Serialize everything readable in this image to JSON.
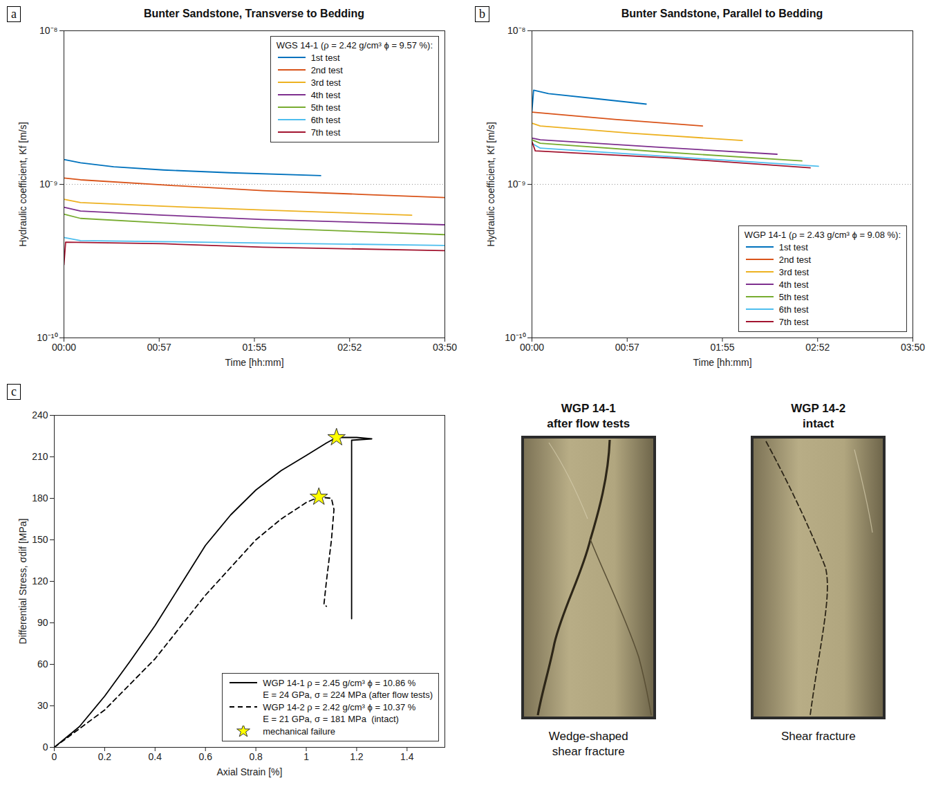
{
  "chart_data": [
    {
      "type": "line",
      "panel_label": "a",
      "title": "Bunter Sandstone, Transverse to Bedding",
      "x_label": "Time [hh:mm]",
      "y_label": "Hydraulic coefficient, Kf [m/s]",
      "log": "y",
      "grid": "y",
      "legend": "upper right",
      "legend_title": "WGS 14-1 (ρ = 2.42 g/cm³ ϕ = 9.57 %):",
      "xlim": [
        0,
        230
      ],
      "xticks": [
        {
          "value": 0,
          "label": "00:00"
        },
        {
          "value": 57.5,
          "label": "00:57"
        },
        {
          "value": 115,
          "label": "01:55"
        },
        {
          "value": 172.5,
          "label": "02:52"
        },
        {
          "value": 230,
          "label": "03:50"
        }
      ],
      "ylim": [
        1e-10,
        1e-08
      ],
      "yticks": [
        {
          "value": 1e-10,
          "label": "10⁻¹⁰"
        },
        {
          "value": 1e-09,
          "label": "10⁻⁹"
        },
        {
          "value": 1e-08,
          "label": "10⁻⁸"
        }
      ],
      "series": [
        {
          "name": "1st test",
          "color": "#0072BD",
          "x": [
            0,
            10,
            30,
            60,
            100,
            155
          ],
          "values": [
            1.45e-09,
            1.38e-09,
            1.3e-09,
            1.24e-09,
            1.19e-09,
            1.14e-09
          ]
        },
        {
          "name": "2nd test",
          "color": "#D95319",
          "x": [
            0,
            10,
            60,
            120,
            180,
            230
          ],
          "values": [
            1.1e-09,
            1.07e-09,
            9.9e-10,
            9.1e-10,
            8.6e-10,
            8.2e-10
          ]
        },
        {
          "name": "3rd test",
          "color": "#EDB120",
          "x": [
            0,
            10,
            60,
            120,
            210
          ],
          "values": [
            8e-10,
            7.6e-10,
            7.2e-10,
            6.8e-10,
            6.3e-10
          ]
        },
        {
          "name": "4th test",
          "color": "#7E2F8E",
          "x": [
            0,
            10,
            60,
            120,
            230
          ],
          "values": [
            7.1e-10,
            6.7e-10,
            6.3e-10,
            5.9e-10,
            5.45e-10
          ]
        },
        {
          "name": "5th test",
          "color": "#77AC30",
          "x": [
            0,
            10,
            60,
            120,
            230
          ],
          "values": [
            6.4e-10,
            6e-10,
            5.6e-10,
            5.2e-10,
            4.7e-10
          ]
        },
        {
          "name": "6th test",
          "color": "#4DBEEE",
          "x": [
            0,
            10,
            120,
            230
          ],
          "values": [
            4.5e-10,
            4.3e-10,
            4.15e-10,
            4e-10
          ]
        },
        {
          "name": "7th test",
          "color": "#A2142F",
          "x": [
            0,
            1,
            60,
            120,
            230
          ],
          "values": [
            3e-10,
            4.2e-10,
            4.1e-10,
            3.9e-10,
            3.7e-10
          ]
        }
      ]
    },
    {
      "type": "line",
      "panel_label": "b",
      "title": "Bunter Sandstone, Parallel to Bedding",
      "x_label": "Time [hh:mm]",
      "y_label": "Hydraulic coefficient, Kf [m/s]",
      "log": "y",
      "grid": "y",
      "legend": "lower right",
      "legend_title": "WGP 14-1 (ρ = 2.43 g/cm³ ϕ = 9.08 %):",
      "xlim": [
        0,
        230
      ],
      "xticks": [
        {
          "value": 0,
          "label": "00:00"
        },
        {
          "value": 57.5,
          "label": "00:57"
        },
        {
          "value": 115,
          "label": "01:55"
        },
        {
          "value": 172.5,
          "label": "02:52"
        },
        {
          "value": 230,
          "label": "03:50"
        }
      ],
      "ylim": [
        1e-10,
        1e-08
      ],
      "yticks": [
        {
          "value": 1e-10,
          "label": "10⁻¹⁰"
        },
        {
          "value": 1e-09,
          "label": "10⁻⁹"
        },
        {
          "value": 1e-08,
          "label": "10⁻⁸"
        }
      ],
      "series": [
        {
          "name": "1st test",
          "color": "#0072BD",
          "x": [
            0,
            1,
            10,
            40,
            69
          ],
          "values": [
            3e-09,
            4.1e-09,
            3.9e-09,
            3.6e-09,
            3.33e-09
          ]
        },
        {
          "name": "2nd test",
          "color": "#D95319",
          "x": [
            0,
            50,
            103
          ],
          "values": [
            2.95e-09,
            2.65e-09,
            2.4e-09
          ]
        },
        {
          "name": "3rd test",
          "color": "#EDB120",
          "x": [
            0,
            5,
            60,
            127
          ],
          "values": [
            2.5e-09,
            2.4e-09,
            2.15e-09,
            1.93e-09
          ]
        },
        {
          "name": "4th test",
          "color": "#7E2F8E",
          "x": [
            0,
            5,
            75,
            148
          ],
          "values": [
            2e-09,
            1.95e-09,
            1.75e-09,
            1.57e-09
          ]
        },
        {
          "name": "5th test",
          "color": "#77AC30",
          "x": [
            0,
            5,
            80,
            163
          ],
          "values": [
            1.95e-09,
            1.85e-09,
            1.62e-09,
            1.42e-09
          ]
        },
        {
          "name": "6th test",
          "color": "#4DBEEE",
          "x": [
            0,
            5,
            90,
            173
          ],
          "values": [
            1.85e-09,
            1.72e-09,
            1.5e-09,
            1.31e-09
          ]
        },
        {
          "name": "7th test",
          "color": "#A2142F",
          "x": [
            0,
            2,
            85,
            168
          ],
          "values": [
            1.9e-09,
            1.65e-09,
            1.48e-09,
            1.28e-09
          ]
        }
      ]
    },
    {
      "type": "line",
      "panel_label": "c",
      "x_label": "Axial Strain [%]",
      "y_label": "Differential Stress, σdif [MPa]",
      "legend": "lower right",
      "xlim": [
        0,
        1.55
      ],
      "xticks": [
        0,
        0.2,
        0.4,
        0.6,
        0.8,
        1,
        1.2,
        1.4
      ],
      "ylim": [
        0,
        240
      ],
      "yticks": [
        0,
        30,
        60,
        90,
        120,
        150,
        180,
        210,
        240
      ],
      "series": [
        {
          "name": "WGP 14-1 ρ = 2.45 g/cm³ ϕ = 10.86 %\nE = 24 GPa, σ = 224 MPa (after flow tests)",
          "color": "#000000",
          "line_style": "solid",
          "x": [
            0,
            0.1,
            0.2,
            0.3,
            0.4,
            0.5,
            0.6,
            0.7,
            0.8,
            0.9,
            1.0,
            1.08,
            1.12,
            1.2,
            1.26,
            1.18,
            1.18
          ],
          "values": [
            0,
            15,
            37,
            62,
            88,
            117,
            146,
            168,
            186,
            200,
            211,
            220,
            224,
            224,
            223,
            222,
            93
          ]
        },
        {
          "name": "WGP 14-2 ρ = 2.42 g/cm³ ϕ = 10.37 %\nE = 21 GPa, σ = 181 MPa  (intact)",
          "color": "#000000",
          "line_style": "dashed",
          "x": [
            0,
            0.2,
            0.4,
            0.6,
            0.8,
            0.9,
            1.0,
            1.05,
            1.1,
            1.11,
            1.1,
            1.08,
            1.07,
            1.08
          ],
          "values": [
            0,
            27,
            64,
            110,
            150,
            165,
            177,
            181,
            180,
            172,
            150,
            120,
            103,
            102
          ]
        },
        {
          "name": "mechanical failure",
          "type": "scatter",
          "marker": "star",
          "color": "#FFFF00",
          "x": [
            1.12,
            1.05
          ],
          "values": [
            224,
            181
          ]
        }
      ]
    }
  ],
  "photos": [
    {
      "title": "WGP 14-1",
      "subtitle": "after flow tests",
      "caption": "Wedge-shaped shear fracture"
    },
    {
      "title": "WGP 14-2",
      "subtitle": "intact",
      "caption": "Shear fracture"
    }
  ]
}
